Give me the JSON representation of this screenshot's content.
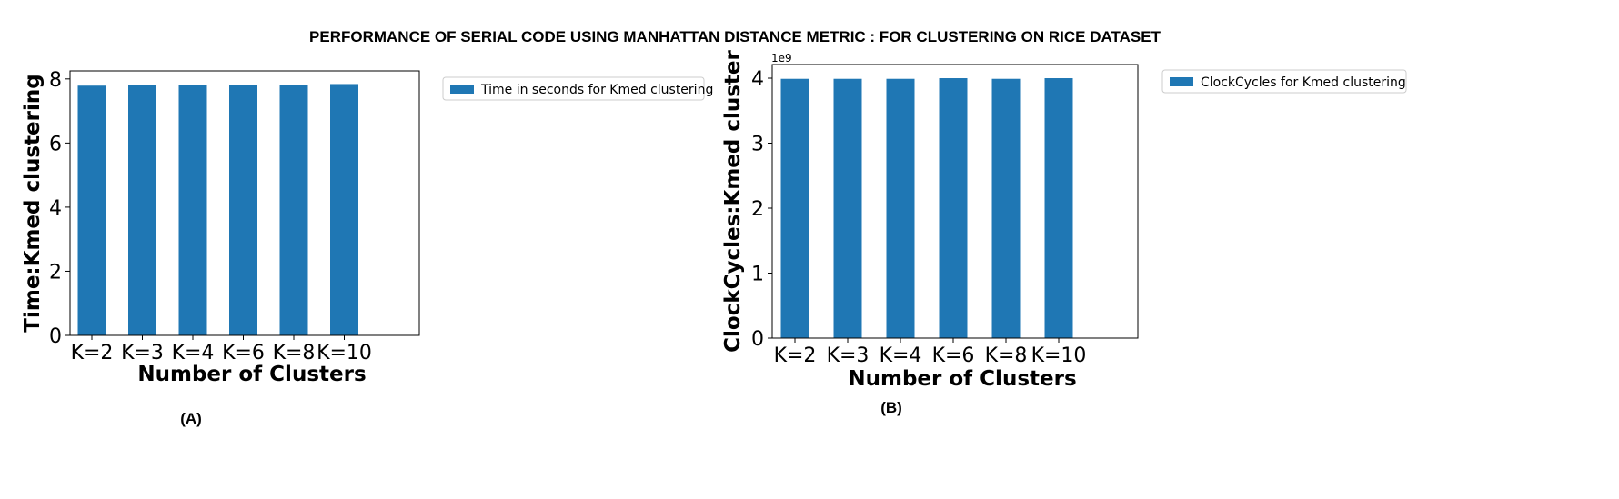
{
  "page": {
    "title": "PERFORMANCE OF SERIAL CODE USING MANHATTAN DISTANCE METRIC : FOR CLUSTERING ON RICE DATASET"
  },
  "colors": {
    "bar": "#1f77b4",
    "frame": "#000000"
  },
  "chart_data": [
    {
      "type": "bar",
      "panel_label": "(A)",
      "categories": [
        "K=2",
        "K=3",
        "K=4",
        "K=6",
        "K=8",
        "K=10"
      ],
      "series": [
        {
          "name": "Time in seconds for Kmed clustering",
          "values": [
            7.79,
            7.82,
            7.81,
            7.81,
            7.81,
            7.84
          ]
        }
      ],
      "xlabel": "Number of Clusters",
      "ylabel": "Time:Kmed clustering",
      "ylim": [
        0,
        8.25
      ],
      "yticks": [
        0,
        2,
        4,
        6,
        8
      ],
      "offset_label": "",
      "legend_position": "outside-right",
      "grid": false
    },
    {
      "type": "bar",
      "panel_label": "(B)",
      "categories": [
        "K=2",
        "K=3",
        "K=4",
        "K=6",
        "K=8",
        "K=10"
      ],
      "series": [
        {
          "name": "ClockCycles for Kmed clustering",
          "values": [
            3990000000,
            3990000000,
            3990000000,
            4000000000,
            3990000000,
            4000000000
          ]
        }
      ],
      "xlabel": "Number of Clusters",
      "ylabel": "ClockCycles:Kmed cluster",
      "ylim": [
        0,
        4210000000
      ],
      "yticks": [
        0,
        1,
        2,
        3,
        4
      ],
      "tick_scale": 1000000000,
      "offset_label": "1e9",
      "legend_position": "outside-right",
      "grid": false
    }
  ]
}
